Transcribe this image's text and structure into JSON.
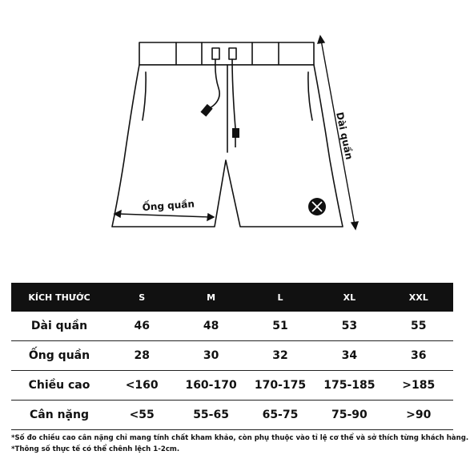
{
  "illustration": {
    "length_label": "Dài quần",
    "leg_label": "Ống quần"
  },
  "table": {
    "header": [
      "KÍCH THƯỚC",
      "S",
      "M",
      "L",
      "XL",
      "XXL"
    ],
    "rows": [
      [
        "Dài quần",
        "46",
        "48",
        "51",
        "53",
        "55"
      ],
      [
        "Ống quần",
        "28",
        "30",
        "32",
        "34",
        "36"
      ],
      [
        "Chiều cao",
        "<160",
        "160-170",
        "170-175",
        "175-185",
        ">185"
      ],
      [
        "Cân nặng",
        "<55",
        "55-65",
        "65-75",
        "75-90",
        ">90"
      ]
    ]
  },
  "notes": [
    "*Số đo chiều cao cân nặng chỉ mang tính chất kham khảo, còn phụ thuộc vào tỉ lệ cơ thể và sở thích từng khách hàng.",
    "*Thông số thực tế có thể chênh lệch 1-2cm."
  ]
}
